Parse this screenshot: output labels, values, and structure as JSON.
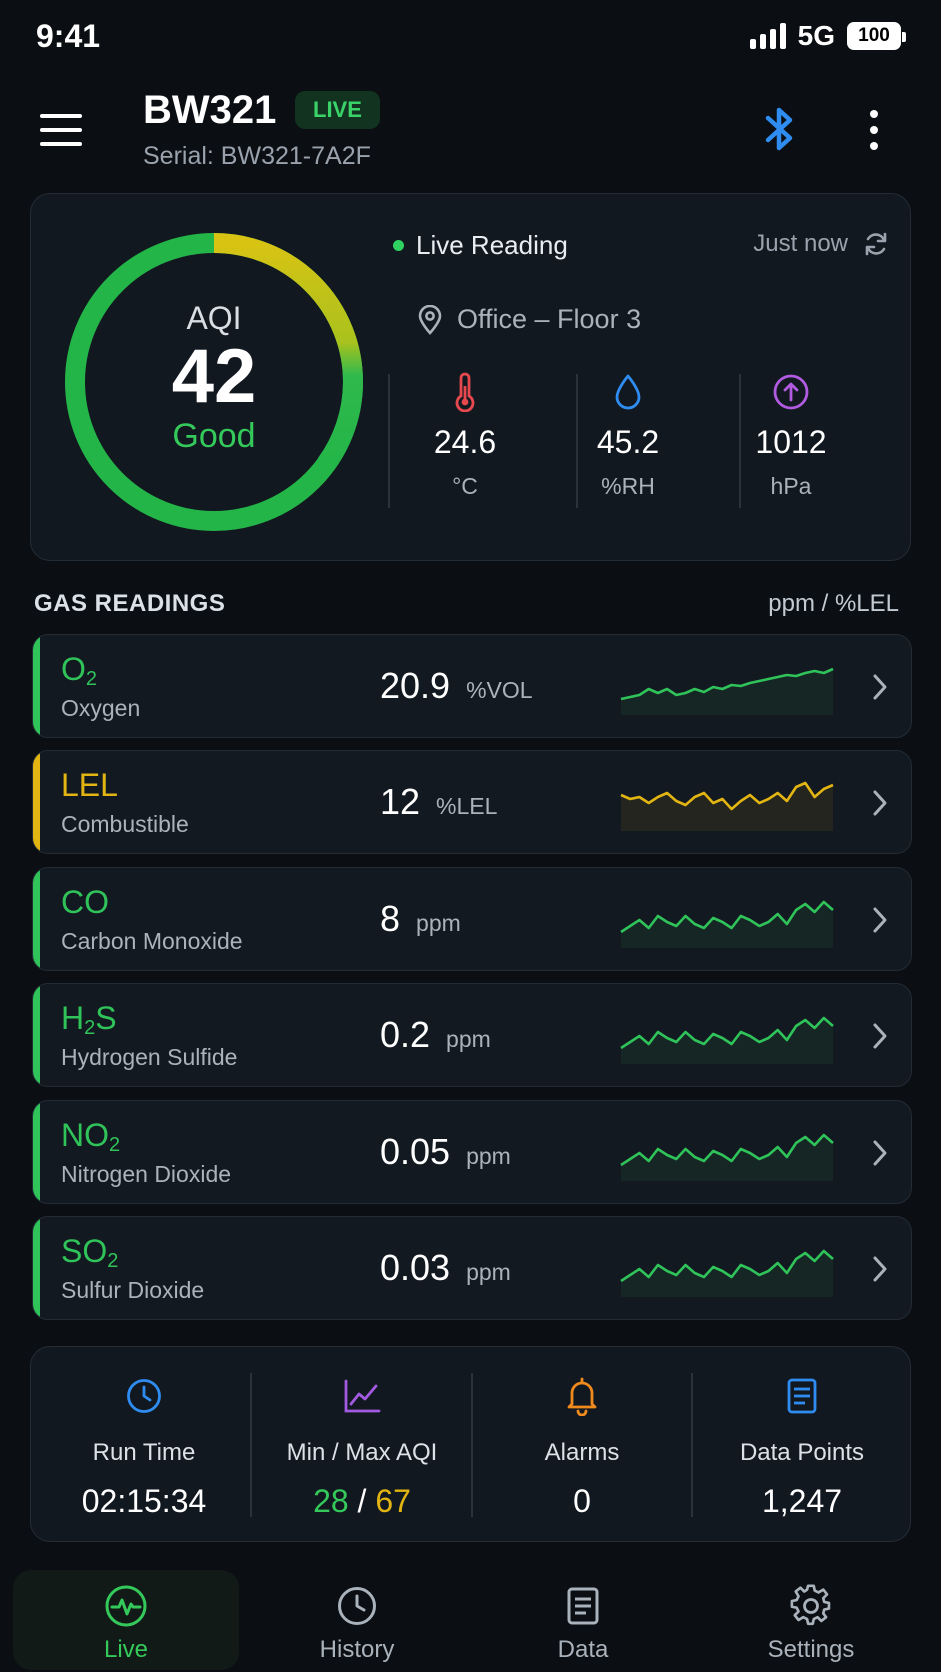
{
  "status_bar": {
    "time": "9:41",
    "network": "5G",
    "battery": "100"
  },
  "header": {
    "title": "BW321",
    "badge": "LIVE",
    "serial": "Serial: BW321-7A2F",
    "icons": [
      "menu-icon",
      "bluetooth-icon",
      "more-vertical-icon"
    ]
  },
  "summary": {
    "aqi_label": "AQI",
    "aqi_value": "42",
    "aqi_status": "Good",
    "gauge_fraction": 1.0,
    "live_label": "Live Reading",
    "updated": "Just now",
    "location": "Office – Floor 3",
    "environment": [
      {
        "icon": "thermometer-icon",
        "value": "24.6",
        "unit": "°C",
        "color": "#e5484d"
      },
      {
        "icon": "droplet-icon",
        "value": "45.2",
        "unit": "%RH",
        "color": "#2f8cf0"
      },
      {
        "icon": "pressure-icon",
        "value": "1012",
        "unit": "hPa",
        "color": "#b15be0"
      }
    ]
  },
  "gas_section": {
    "title": "GAS READINGS",
    "units": "ppm / %LEL"
  },
  "gases": [
    {
      "symbol_main": "O",
      "symbol_sub": "2",
      "symbol_tail": "",
      "name": "Oxygen",
      "value": "20.9",
      "unit": "%VOL",
      "color": "#2fc35a"
    },
    {
      "symbol_main": "LEL",
      "symbol_sub": "",
      "symbol_tail": "",
      "name": "Combustible",
      "value": "12",
      "unit": "%LEL",
      "color": "#e2b512"
    },
    {
      "symbol_main": "CO",
      "symbol_sub": "",
      "symbol_tail": "",
      "name": "Carbon Monoxide",
      "value": "8",
      "unit": "ppm",
      "color": "#2fc35a"
    },
    {
      "symbol_main": "H",
      "symbol_sub": "2",
      "symbol_tail": "S",
      "name": "Hydrogen Sulfide",
      "value": "0.2",
      "unit": "ppm",
      "color": "#2fc35a"
    },
    {
      "symbol_main": "NO",
      "symbol_sub": "2",
      "symbol_tail": "",
      "name": "Nitrogen Dioxide",
      "value": "0.05",
      "unit": "ppm",
      "color": "#2fc35a"
    },
    {
      "symbol_main": "SO",
      "symbol_sub": "2",
      "symbol_tail": "",
      "name": "Sulfur Dioxide",
      "value": "0.03",
      "unit": "ppm",
      "color": "#2fc35a"
    }
  ],
  "stats": {
    "run_time_label": "Run Time",
    "run_time": "02:15:34",
    "minmax_label": "Min / Max AQI",
    "min_aqi": "28",
    "minmax_sep": "/",
    "max_aqi": "67",
    "alarms_label": "Alarms",
    "alarms": "0",
    "datapoints_label": "Data Points",
    "datapoints": "1,247"
  },
  "nav": [
    {
      "icon": "activity-icon",
      "label": "Live",
      "active": true
    },
    {
      "icon": "clock-icon",
      "label": "History",
      "active": false
    },
    {
      "icon": "document-icon",
      "label": "Data",
      "active": false
    },
    {
      "icon": "gear-icon",
      "label": "Settings",
      "active": false
    }
  ],
  "colors": {
    "green": "#34c95a",
    "yellow": "#e2b512",
    "blue": "#2f8cf0",
    "purple": "#a25be0",
    "orange": "#f08a1c"
  }
}
